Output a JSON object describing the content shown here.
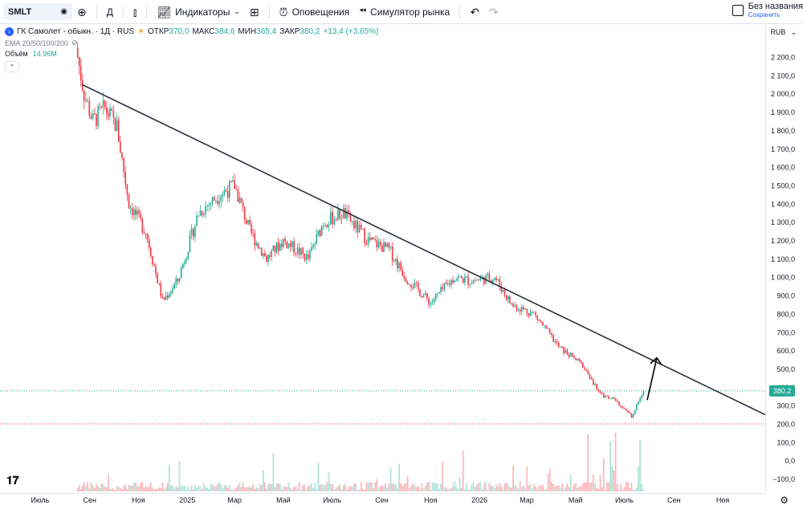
{
  "toolbar": {
    "symbol": "SMLT",
    "interval": "Д",
    "indicators_label": "Индикаторы",
    "alerts_label": "Оповещения",
    "replay_label": "Симулятор рынка",
    "layout_title": "Без названия",
    "layout_save": "Сохранить"
  },
  "legend": {
    "title": "ГК Самолет - обыкн. · 1Д · RUS",
    "open_label": "ОТКР",
    "open_value": "370,0",
    "high_label": "МАКС",
    "high_value": "384,6",
    "low_label": "МИН",
    "low_value": "365,4",
    "close_label": "ЗАКР",
    "close_value": "380,2",
    "change": "+13,4 (+3,65%)",
    "ema_label": "EMA 20/50/100/200",
    "volume_label": "Объём",
    "volume_value": "14,96M"
  },
  "currency": "RUB",
  "colors": {
    "up": "#22ab94",
    "down": "#f23645",
    "line": "#2a2e39",
    "accent": "#2962ff"
  },
  "chart_data": {
    "type": "candlestick",
    "price_axis": {
      "ticks": [
        "2 200,0",
        "2 100,0",
        "2 000,0",
        "1 900,0",
        "1 800,0",
        "1 700,0",
        "1 600,0",
        "1 500,0",
        "1 400,0",
        "1 300,0",
        "1 200,0",
        "1 100,0",
        "1 000,0",
        "900,0",
        "800,0",
        "700,0",
        "600,0",
        "500,0",
        "400,0",
        "300,0",
        "200,0",
        "100,0",
        "0,0",
        "−100,0"
      ],
      "range": [
        -100,
        2200
      ]
    },
    "time_axis": {
      "ticks": [
        "Июль",
        "Сен",
        "Ноя",
        "2025",
        "Мар",
        "Май",
        "Июль",
        "Сен",
        "Ноя",
        "2026",
        "Мар",
        "Май",
        "Июль",
        "Сен",
        "Ноя"
      ]
    },
    "last_price": 380.2,
    "last_price_label": "380,2",
    "trendline": {
      "from_value": 2050,
      "to_value": 250
    },
    "arrow": {
      "from_value": 330,
      "to_value": 560
    },
    "close_path": [
      {
        "t": "2024-08-15",
        "v": 2250
      },
      {
        "t": "2024-08-25",
        "v": 2000
      },
      {
        "t": "2024-09-05",
        "v": 1850
      },
      {
        "t": "2024-09-20",
        "v": 1920
      },
      {
        "t": "2024-10-05",
        "v": 1820
      },
      {
        "t": "2024-10-20",
        "v": 1400
      },
      {
        "t": "2024-11-10",
        "v": 1250
      },
      {
        "t": "2024-12-01",
        "v": 870
      },
      {
        "t": "2024-12-20",
        "v": 980
      },
      {
        "t": "2025-01-15",
        "v": 1350
      },
      {
        "t": "2025-02-10",
        "v": 1450
      },
      {
        "t": "2025-03-01",
        "v": 1500
      },
      {
        "t": "2025-03-20",
        "v": 1250
      },
      {
        "t": "2025-04-10",
        "v": 1100
      },
      {
        "t": "2025-05-01",
        "v": 1200
      },
      {
        "t": "2025-06-01",
        "v": 1100
      },
      {
        "t": "2025-06-20",
        "v": 1300
      },
      {
        "t": "2025-07-15",
        "v": 1350
      },
      {
        "t": "2025-08-15",
        "v": 1200
      },
      {
        "t": "2025-09-10",
        "v": 1150
      },
      {
        "t": "2025-10-01",
        "v": 1000
      },
      {
        "t": "2025-11-01",
        "v": 860
      },
      {
        "t": "2025-12-01",
        "v": 1000
      },
      {
        "t": "2025-12-20",
        "v": 980
      },
      {
        "t": "2026-01-20",
        "v": 1000
      },
      {
        "t": "2026-02-10",
        "v": 850
      },
      {
        "t": "2026-03-10",
        "v": 800
      },
      {
        "t": "2026-04-10",
        "v": 620
      },
      {
        "t": "2026-05-10",
        "v": 520
      },
      {
        "t": "2026-06-01",
        "v": 360
      },
      {
        "t": "2026-06-20",
        "v": 330
      },
      {
        "t": "2026-07-10",
        "v": 240
      },
      {
        "t": "2026-07-25",
        "v": 380
      }
    ]
  }
}
